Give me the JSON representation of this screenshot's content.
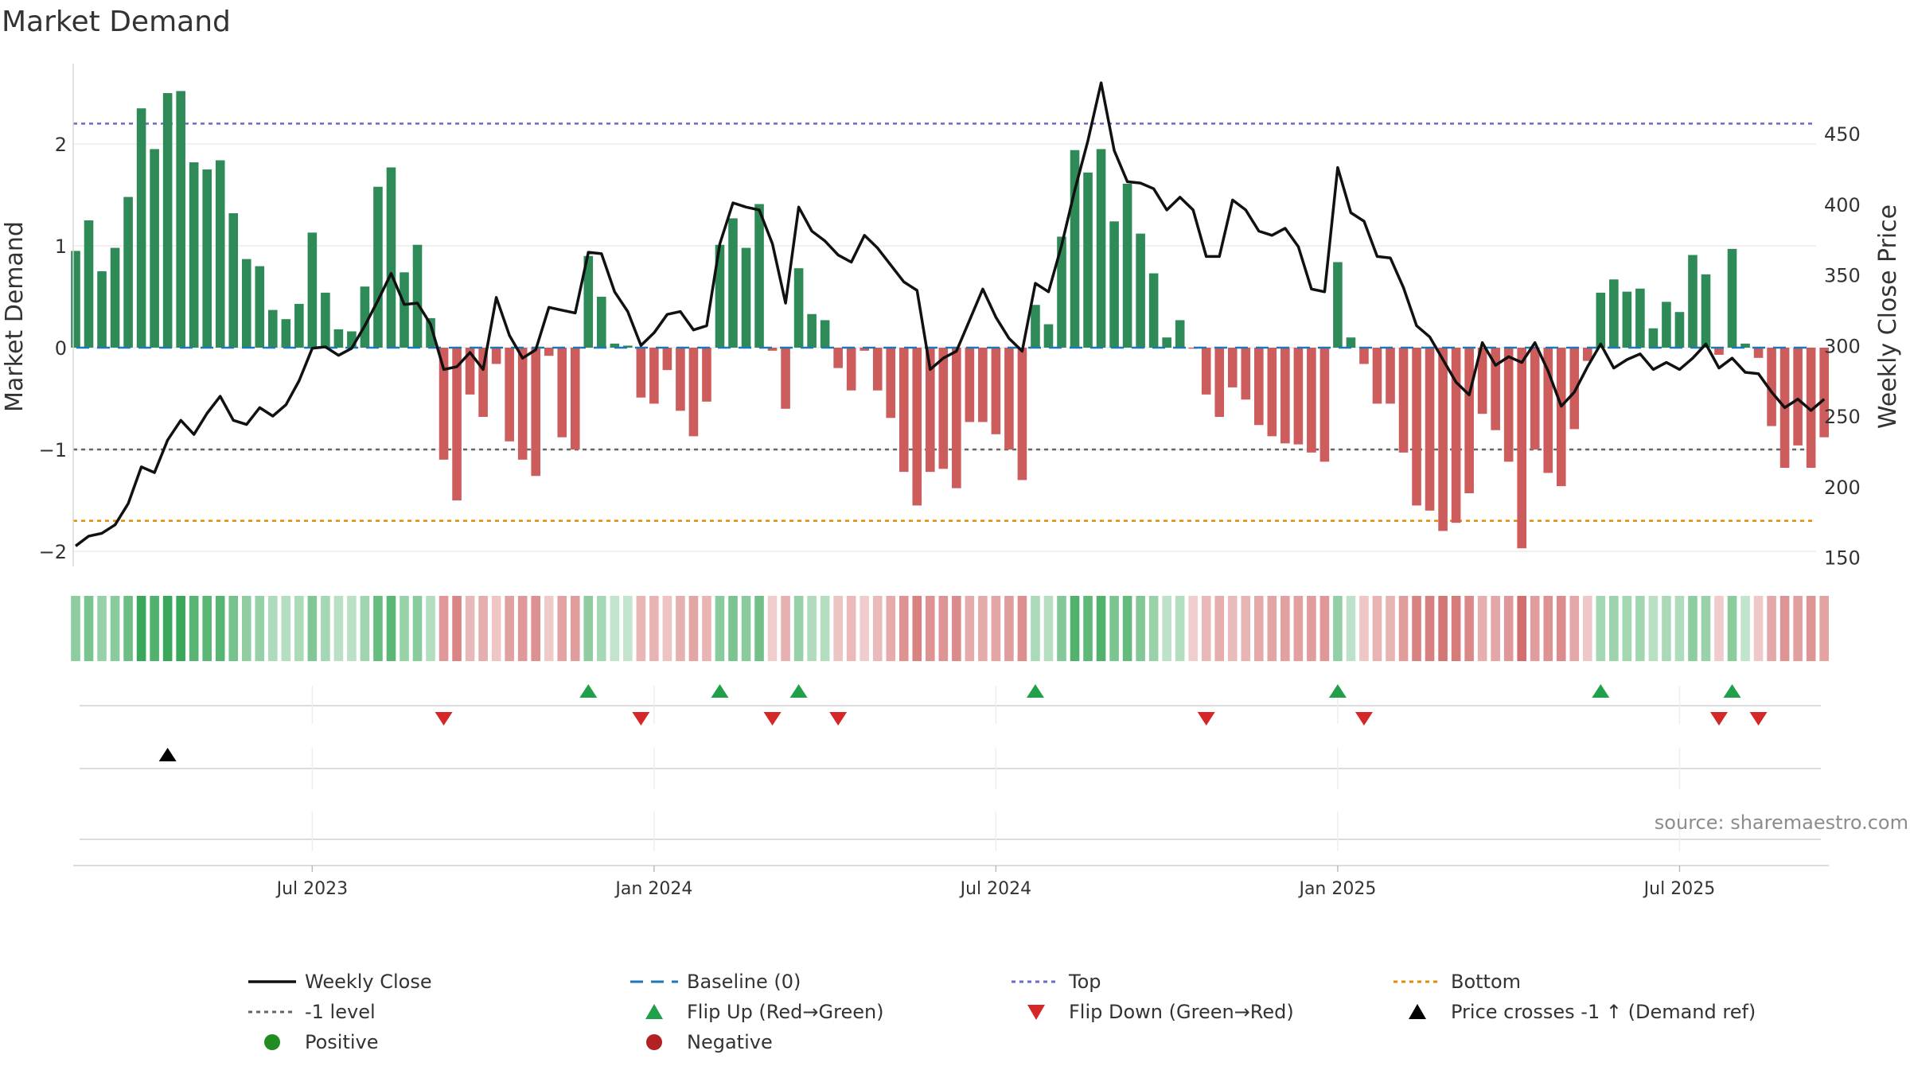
{
  "chart_data": {
    "type": "bar",
    "title": "Market Demand",
    "ylabel_left": "Market Demand",
    "ylabel_right": "Weekly Close Price",
    "ylim_left": [
      -2.2,
      2.8
    ],
    "ylim_right": [
      145,
      495
    ],
    "yticks_left": [
      2,
      1,
      0,
      -1,
      -2
    ],
    "yticks_left_labels": [
      "2",
      "1",
      "0",
      "−1",
      "−2"
    ],
    "yticks_right": [
      450,
      400,
      350,
      300,
      250,
      200,
      150
    ],
    "yticks_right_labels": [
      "450",
      "400",
      "350",
      "300",
      "250",
      "200",
      "150"
    ],
    "x_date_labels": [
      "Jul 2023",
      "Jan 2024",
      "Jul 2024",
      "Jan 2025",
      "Jul 2025"
    ],
    "x_date_label_weeks": [
      18,
      44,
      70,
      96,
      122
    ],
    "reference_lines": {
      "baseline": 0,
      "top": 2.2,
      "bottom": -1.7,
      "minus_one": -1
    },
    "series": [
      {
        "name": "Market Demand",
        "values": [
          0.95,
          1.25,
          0.75,
          0.98,
          1.48,
          2.35,
          1.95,
          2.5,
          2.52,
          1.82,
          1.75,
          1.84,
          1.32,
          0.87,
          0.8,
          0.37,
          0.28,
          0.43,
          1.13,
          0.54,
          0.18,
          0.16,
          0.6,
          1.58,
          1.77,
          0.74,
          1.01,
          0.29,
          -1.1,
          -1.5,
          -0.46,
          -0.68,
          -0.16,
          -0.92,
          -1.1,
          -1.26,
          -0.08,
          -0.88,
          -1.0,
          0.9,
          0.5,
          0.04,
          0.02,
          -0.49,
          -0.55,
          -0.22,
          -0.62,
          -0.87,
          -0.53,
          1.01,
          1.27,
          0.98,
          1.41,
          -0.03,
          -0.6,
          0.78,
          0.33,
          0.27,
          -0.2,
          -0.42,
          -0.03,
          -0.42,
          -0.69,
          -1.22,
          -1.55,
          -1.22,
          -1.19,
          -1.38,
          -0.73,
          -0.73,
          -0.85,
          -1.0,
          -1.3,
          0.42,
          0.23,
          1.09,
          1.94,
          1.72,
          1.95,
          1.24,
          1.61,
          1.12,
          0.73,
          0.1,
          0.27,
          -0.01,
          -0.46,
          -0.68,
          -0.39,
          -0.51,
          -0.76,
          -0.87,
          -0.94,
          -0.95,
          -1.03,
          -1.12,
          0.84,
          0.1,
          -0.16,
          -0.55,
          -0.55,
          -1.03,
          -1.55,
          -1.6,
          -1.8,
          -1.72,
          -1.43,
          -0.65,
          -0.81,
          -1.12,
          -1.97,
          -1.0,
          -1.23,
          -1.36,
          -0.8,
          -0.13,
          0.54,
          0.67,
          0.55,
          0.58,
          0.19,
          0.45,
          0.35,
          0.91,
          0.72,
          -0.07,
          0.97,
          0.04,
          -0.1,
          -0.77,
          -1.18,
          -0.96,
          -1.18,
          -0.88
        ]
      },
      {
        "name": "Weekly Close",
        "values": [
          158,
          165,
          167,
          173,
          188,
          214,
          210,
          233,
          247,
          237,
          252,
          264,
          247,
          244,
          256,
          250,
          258,
          275,
          298,
          299,
          293,
          298,
          314,
          332,
          351,
          329,
          330,
          315,
          283,
          285,
          295,
          283,
          334,
          307,
          291,
          297,
          327,
          325,
          323,
          366,
          365,
          338,
          324,
          300,
          309,
          322,
          324,
          311,
          314,
          372,
          401,
          398,
          396,
          372,
          330,
          398,
          381,
          374,
          364,
          359,
          378,
          369,
          357,
          345,
          339,
          283,
          291,
          296,
          318,
          340,
          320,
          305,
          296,
          344,
          338,
          371,
          410,
          445,
          486,
          438,
          416,
          415,
          411,
          396,
          405,
          396,
          363,
          363,
          403,
          396,
          381,
          378,
          383,
          370,
          340,
          338,
          426,
          394,
          388,
          363,
          362,
          341,
          314,
          306,
          290,
          274,
          265,
          302,
          286,
          292,
          288,
          302,
          282,
          257,
          267,
          285,
          301,
          284,
          290,
          294,
          283,
          288,
          283,
          291,
          301,
          284,
          291,
          281,
          280,
          267,
          256,
          262,
          254,
          262
        ]
      }
    ],
    "flip_up_weeks": [
      39,
      49,
      55,
      73,
      96,
      116,
      126
    ],
    "flip_down_weeks": [
      28,
      43,
      53,
      58,
      86,
      98,
      125,
      128
    ],
    "cross_up_weeks": [
      7
    ],
    "legend": {
      "weekly_close": "Weekly Close",
      "baseline": "Baseline (0)",
      "top": "Top",
      "bottom": "Bottom",
      "minus_one": "-1 level",
      "flip_up": "Flip Up (Red→Green)",
      "flip_down": "Flip Down (Green→Red)",
      "price_cross": "Price crosses -1 ↑ (Demand ref)",
      "positive": "Positive",
      "negative": "Negative"
    },
    "source": "source: sharemaestro.com"
  },
  "colors": {
    "positive": "#2e8b57",
    "negative": "#cd5c5c",
    "line": "#111111",
    "baseline": "#1f77b4",
    "top": "#6a6ac8",
    "bottom": "#e08c00",
    "minus_one": "#666666",
    "flip_up": "#21a04a",
    "flip_down": "#d62728",
    "cross": "#000000",
    "positive_dot": "#228b22",
    "negative_dot": "#b22222",
    "grid": "#e6e6e6"
  }
}
